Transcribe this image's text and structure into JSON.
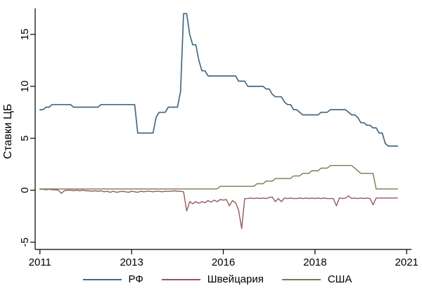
{
  "figure": {
    "background_color": "#ffffff",
    "text_color": "#000000",
    "axis_color": "#000000"
  },
  "chart_data": {
    "type": "line",
    "title": "",
    "xlabel": "",
    "ylabel": "Ставки ЦБ",
    "grid": false,
    "legend_position": "bottom-center",
    "x_start_year": 2011.0,
    "x_step_years": 0.0833333,
    "xlim": [
      2010.87,
      2021.13
    ],
    "ylim": [
      -5.7,
      17.5
    ],
    "x_ticks": {
      "labels": [
        "2011",
        "2013",
        "2016",
        "2018",
        "2021"
      ],
      "years": [
        2011,
        2013.5,
        2016,
        2018.5,
        2021
      ]
    },
    "y_ticks": {
      "labels": [
        "-5",
        "0",
        "5",
        "10",
        "15"
      ],
      "values": [
        -5,
        0,
        5,
        10,
        15
      ]
    },
    "series": [
      {
        "name": "РФ",
        "color": "#446a82",
        "values": [
          7.75,
          7.75,
          8.0,
          8.0,
          8.25,
          8.25,
          8.25,
          8.25,
          8.25,
          8.25,
          8.25,
          8.0,
          8.0,
          8.0,
          8.0,
          8.0,
          8.0,
          8.0,
          8.0,
          8.0,
          8.25,
          8.25,
          8.25,
          8.25,
          8.25,
          8.25,
          8.25,
          8.25,
          8.25,
          8.25,
          8.25,
          8.25,
          5.5,
          5.5,
          5.5,
          5.5,
          5.5,
          5.5,
          7.0,
          7.5,
          7.5,
          7.5,
          8.0,
          8.0,
          8.0,
          8.0,
          9.5,
          17.0,
          17.0,
          15.0,
          14.0,
          14.0,
          12.5,
          11.5,
          11.5,
          11.0,
          11.0,
          11.0,
          11.0,
          11.0,
          11.0,
          11.0,
          11.0,
          11.0,
          11.0,
          10.5,
          10.5,
          10.5,
          10.0,
          10.0,
          10.0,
          10.0,
          10.0,
          10.0,
          9.75,
          9.75,
          9.25,
          9.0,
          9.0,
          9.0,
          8.5,
          8.25,
          8.25,
          7.75,
          7.75,
          7.5,
          7.25,
          7.25,
          7.25,
          7.25,
          7.25,
          7.25,
          7.5,
          7.5,
          7.5,
          7.75,
          7.75,
          7.75,
          7.75,
          7.75,
          7.75,
          7.5,
          7.25,
          7.25,
          7.0,
          6.5,
          6.5,
          6.25,
          6.25,
          6.0,
          6.0,
          5.5,
          5.5,
          4.5,
          4.25,
          4.25,
          4.25,
          4.25
        ]
      },
      {
        "name": "Швейцария",
        "color": "#955a5c",
        "values": [
          0.1,
          0.1,
          0.05,
          0.1,
          0.05,
          0.05,
          0.0,
          -0.3,
          -0.05,
          0.0,
          0.0,
          -0.05,
          0.0,
          -0.05,
          0.0,
          -0.05,
          -0.05,
          -0.1,
          -0.05,
          -0.1,
          -0.05,
          -0.15,
          -0.1,
          -0.2,
          -0.1,
          -0.2,
          -0.15,
          -0.1,
          -0.15,
          -0.2,
          -0.1,
          -0.15,
          -0.2,
          -0.1,
          -0.15,
          -0.1,
          -0.1,
          -0.15,
          -0.1,
          -0.1,
          -0.15,
          -0.1,
          -0.1,
          -0.1,
          -0.05,
          -0.1,
          -0.1,
          -0.15,
          -2.0,
          -1.1,
          -1.3,
          -1.1,
          -1.25,
          -1.1,
          -1.2,
          -1.0,
          -1.15,
          -0.95,
          -1.1,
          -0.9,
          -0.95,
          -0.9,
          -1.5,
          -1.0,
          -1.2,
          -1.9,
          -3.7,
          -0.8,
          -0.8,
          -0.75,
          -0.8,
          -0.75,
          -0.8,
          -0.75,
          -0.8,
          -0.7,
          -0.65,
          -1.1,
          -0.8,
          -1.1,
          -0.75,
          -0.8,
          -0.75,
          -0.8,
          -0.8,
          -0.75,
          -0.8,
          -0.75,
          -0.8,
          -0.75,
          -0.8,
          -0.75,
          -0.8,
          -0.75,
          -0.8,
          -0.8,
          -0.8,
          -1.5,
          -0.75,
          -0.8,
          -0.75,
          -0.55,
          -0.8,
          -0.75,
          -0.8,
          -0.75,
          -0.8,
          -0.75,
          -0.8,
          -1.4,
          -0.75,
          -0.75,
          -0.75,
          -0.75,
          -0.75,
          -0.75,
          -0.75,
          -0.75
        ]
      },
      {
        "name": "США",
        "color": "#767c4f",
        "values": [
          0.125,
          0.125,
          0.125,
          0.125,
          0.125,
          0.125,
          0.125,
          0.125,
          0.125,
          0.125,
          0.125,
          0.125,
          0.125,
          0.125,
          0.125,
          0.125,
          0.125,
          0.125,
          0.125,
          0.125,
          0.125,
          0.125,
          0.125,
          0.125,
          0.125,
          0.125,
          0.125,
          0.125,
          0.125,
          0.125,
          0.125,
          0.125,
          0.125,
          0.125,
          0.125,
          0.125,
          0.125,
          0.125,
          0.125,
          0.125,
          0.125,
          0.125,
          0.125,
          0.125,
          0.125,
          0.125,
          0.125,
          0.125,
          0.125,
          0.125,
          0.125,
          0.125,
          0.125,
          0.125,
          0.125,
          0.125,
          0.125,
          0.125,
          0.125,
          0.375,
          0.375,
          0.375,
          0.375,
          0.375,
          0.375,
          0.375,
          0.375,
          0.375,
          0.375,
          0.375,
          0.375,
          0.625,
          0.625,
          0.625,
          0.875,
          0.875,
          0.875,
          1.125,
          1.125,
          1.125,
          1.125,
          1.125,
          1.125,
          1.375,
          1.375,
          1.375,
          1.625,
          1.625,
          1.625,
          1.875,
          1.875,
          1.875,
          2.125,
          2.125,
          2.125,
          2.375,
          2.375,
          2.375,
          2.375,
          2.375,
          2.375,
          2.375,
          2.375,
          2.125,
          1.875,
          1.625,
          1.625,
          1.625,
          1.625,
          1.625,
          0.125,
          0.125,
          0.125,
          0.125,
          0.125,
          0.125,
          0.125,
          0.125
        ]
      }
    ]
  }
}
